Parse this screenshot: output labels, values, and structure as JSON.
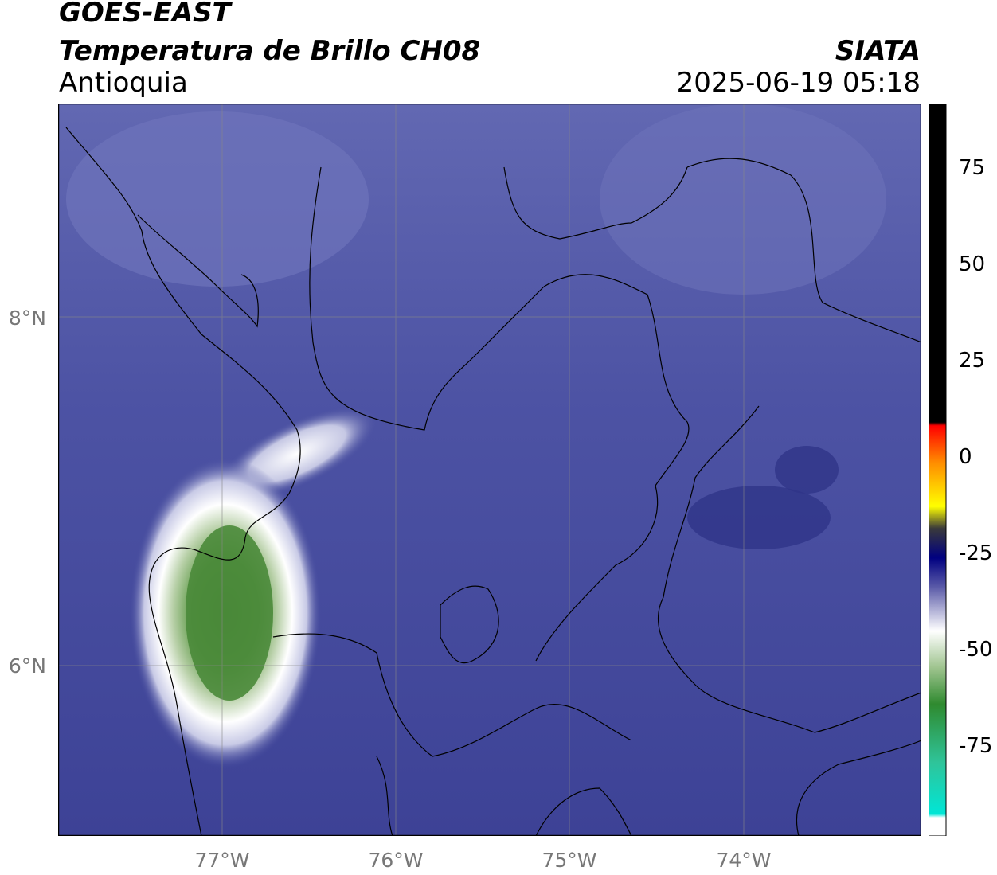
{
  "header": {
    "satellite": "GOES-EAST",
    "product": "Temperatura de Brillo CH08",
    "region": "Antioquia",
    "organization": "SIATA",
    "datetime": "2025-06-19 05:18"
  },
  "map": {
    "lat_ticks": [
      "8°N",
      "6°N"
    ],
    "lon_ticks": [
      "77°W",
      "76°W",
      "75°W",
      "74°W"
    ],
    "colors": {
      "background_dark": "#3a3f94",
      "background_mid": "#4a50a0",
      "background_light": "#6a70b8",
      "cloud_white": "#ffffff",
      "cloud_green": "#4a8a3a",
      "gridline": "#888888",
      "borders": "#000000"
    }
  },
  "colorbar": {
    "tick_labels": [
      "75",
      "50",
      "25",
      "0",
      "-25",
      "-50",
      "-75"
    ],
    "colors": {
      "warm_black": "#000000",
      "red": "#ff0000",
      "orange": "#ff8c00",
      "yellow": "#ffff00",
      "navy": "#000080",
      "blue_purple": "#5a5aa8",
      "white": "#ffffff",
      "green": "#2f8a2f",
      "cyan": "#00e6d6"
    }
  }
}
